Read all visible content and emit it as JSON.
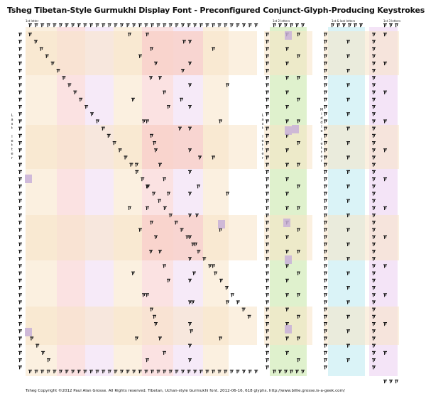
{
  "title": "Tsheg Tibetan-Style Gurmukhi Display Font - Preconfigured Conjunct-Glyph-Producing Keystrokes",
  "section_labels": {
    "first_letter": "1st letter",
    "first_two_letters": "1st 2 letters",
    "first_and_last_letters": "1st & last letters",
    "first_three_letters": "1st 3 letters"
  },
  "side_labels": {
    "last_letter": [
      "L",
      "a",
      "s",
      "t",
      "",
      "l",
      "e",
      "t",
      "t",
      "e",
      "r"
    ],
    "middle_letter": [
      "M",
      "i",
      "d",
      "d",
      "l",
      "e",
      "",
      "l",
      "e",
      "t",
      "t",
      "e",
      "r"
    ]
  },
  "footer": "Tsheg Copyright ©2012 Paul Alan Grosse. All Rights reserved. Tibetan, Uchan-style Gurmukhi font. 2012-06-16, 618 glyphs. http://www.billie.grosse.is-a-geek.com/",
  "colors": {
    "orange_band": "#f7e3c6",
    "red_band": "#f8caca",
    "purple_band": "#efd9f3",
    "green_band": "#dcefc8",
    "cyan_band": "#d6f2f6",
    "glyph_ink": "#1a1a1a"
  }
}
